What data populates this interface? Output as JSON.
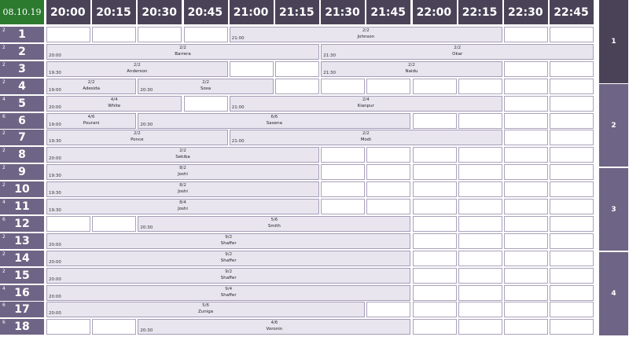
{
  "date": "08.10.19",
  "times": [
    "20:00",
    "20:15",
    "20:30",
    "20:45",
    "21:00",
    "21:15",
    "21:30",
    "21:45",
    "22:00",
    "22:15",
    "22:30",
    "22:45"
  ],
  "sections": [
    {
      "label": "1",
      "active": true
    },
    {
      "label": "2",
      "active": false
    },
    {
      "label": "3",
      "active": false
    },
    {
      "label": "4",
      "active": false
    }
  ],
  "colors": {
    "date": "#2b7a2e",
    "header": "#4a4358",
    "row_header": "#6e6485",
    "section_active": "#4a4358",
    "section": "#6e6485",
    "booking": "#e8e5ef"
  },
  "rows": [
    {
      "table": "1",
      "capacity": "2",
      "cells": [
        {
          "span": 1
        },
        {
          "span": 1
        },
        {
          "span": 1
        },
        {
          "span": 1
        },
        {
          "span": 6,
          "time": "21:00",
          "count": "2/2",
          "name": "Johnson"
        },
        {
          "span": 1
        },
        {
          "span": 1
        }
      ]
    },
    {
      "table": "2",
      "capacity": "2",
      "cells": [
        {
          "span": 6,
          "time": "20:00",
          "count": "2/2",
          "name": "Barrera"
        },
        {
          "span": 6,
          "time": "21:30",
          "count": "2/2",
          "name": "Okar"
        }
      ]
    },
    {
      "table": "3",
      "capacity": "2",
      "cells": [
        {
          "span": 4,
          "time": "19:30",
          "count": "2/2",
          "name": "Anderson"
        },
        {
          "span": 1
        },
        {
          "span": 1
        },
        {
          "span": 4,
          "time": "21:30",
          "count": "2/2",
          "name": "Naidu"
        },
        {
          "span": 1
        },
        {
          "span": 1
        }
      ]
    },
    {
      "table": "4",
      "capacity": "2",
      "cells": [
        {
          "span": 2,
          "time": "19:00",
          "count": "2/2",
          "name": "Adesida"
        },
        {
          "span": 3,
          "time": "20:30",
          "count": "2/2",
          "name": "Sosa"
        },
        {
          "span": 1
        },
        {
          "span": 1
        },
        {
          "span": 1
        },
        {
          "span": 1
        },
        {
          "span": 1
        },
        {
          "span": 1
        },
        {
          "span": 1
        }
      ]
    },
    {
      "table": "5",
      "capacity": "4",
      "cells": [
        {
          "span": 3,
          "time": "20:00",
          "count": "4/4",
          "name": "White"
        },
        {
          "span": 1
        },
        {
          "span": 6,
          "time": "21:00",
          "count": "2/4",
          "name": "Kianpur"
        },
        {
          "span": 1
        },
        {
          "span": 1
        }
      ]
    },
    {
      "table": "6",
      "capacity": "6",
      "cells": [
        {
          "span": 2,
          "time": "19:00",
          "count": "4/6",
          "name": "Pourani"
        },
        {
          "span": 6,
          "time": "20:30",
          "count": "6/6",
          "name": "Saxena"
        },
        {
          "span": 1
        },
        {
          "span": 1
        },
        {
          "span": 1
        },
        {
          "span": 1
        }
      ]
    },
    {
      "table": "7",
      "capacity": "2",
      "cells": [
        {
          "span": 4,
          "time": "19:30",
          "count": "2/2",
          "name": "Ponce"
        },
        {
          "span": 6,
          "time": "21:00",
          "count": "2/2",
          "name": "Modi"
        },
        {
          "span": 1
        },
        {
          "span": 1
        }
      ]
    },
    {
      "table": "8",
      "capacity": "2",
      "cells": [
        {
          "span": 6,
          "time": "20:00",
          "count": "2/2",
          "name": "Sekiba"
        },
        {
          "span": 1
        },
        {
          "span": 1
        },
        {
          "span": 1
        },
        {
          "span": 1
        },
        {
          "span": 1
        },
        {
          "span": 1
        }
      ]
    },
    {
      "table": "9",
      "capacity": "2",
      "cells": [
        {
          "span": 6,
          "time": "19:30",
          "count": "8/2",
          "name": "Joshi"
        },
        {
          "span": 1
        },
        {
          "span": 1
        },
        {
          "span": 1
        },
        {
          "span": 1
        },
        {
          "span": 1
        },
        {
          "span": 1
        }
      ]
    },
    {
      "table": "10",
      "capacity": "2",
      "cells": [
        {
          "span": 6,
          "time": "19:30",
          "count": "8/2",
          "name": "Joshi"
        },
        {
          "span": 1
        },
        {
          "span": 1
        },
        {
          "span": 1
        },
        {
          "span": 1
        },
        {
          "span": 1
        },
        {
          "span": 1
        }
      ]
    },
    {
      "table": "11",
      "capacity": "4",
      "cells": [
        {
          "span": 6,
          "time": "19:30",
          "count": "8/4",
          "name": "Joshi"
        },
        {
          "span": 1
        },
        {
          "span": 1
        },
        {
          "span": 1
        },
        {
          "span": 1
        },
        {
          "span": 1
        },
        {
          "span": 1
        }
      ]
    },
    {
      "table": "12",
      "capacity": "6",
      "cells": [
        {
          "span": 1
        },
        {
          "span": 1
        },
        {
          "span": 6,
          "time": "20:30",
          "count": "5/6",
          "name": "Smith"
        },
        {
          "span": 1
        },
        {
          "span": 1
        },
        {
          "span": 1
        },
        {
          "span": 1
        }
      ]
    },
    {
      "table": "13",
      "capacity": "2",
      "cells": [
        {
          "span": 8,
          "time": "20:00",
          "count": "9/2",
          "name": "Shaffer"
        },
        {
          "span": 1
        },
        {
          "span": 1
        },
        {
          "span": 1
        },
        {
          "span": 1
        }
      ]
    },
    {
      "table": "14",
      "capacity": "2",
      "cells": [
        {
          "span": 8,
          "time": "20:00",
          "count": "9/2",
          "name": "Shaffer"
        },
        {
          "span": 1
        },
        {
          "span": 1
        },
        {
          "span": 1
        },
        {
          "span": 1
        }
      ]
    },
    {
      "table": "15",
      "capacity": "2",
      "cells": [
        {
          "span": 8,
          "time": "20:00",
          "count": "9/2",
          "name": "Shaffer"
        },
        {
          "span": 1
        },
        {
          "span": 1
        },
        {
          "span": 1
        },
        {
          "span": 1
        }
      ]
    },
    {
      "table": "16",
      "capacity": "4",
      "cells": [
        {
          "span": 8,
          "time": "20:00",
          "count": "9/4",
          "name": "Shaffer"
        },
        {
          "span": 1
        },
        {
          "span": 1
        },
        {
          "span": 1
        },
        {
          "span": 1
        }
      ]
    },
    {
      "table": "17",
      "capacity": "6",
      "cells": [
        {
          "span": 7,
          "time": "20:00",
          "count": "5/6",
          "name": "Zuniga"
        },
        {
          "span": 1
        },
        {
          "span": 1
        },
        {
          "span": 1
        },
        {
          "span": 1
        },
        {
          "span": 1
        }
      ]
    },
    {
      "table": "18",
      "capacity": "6",
      "cells": [
        {
          "span": 1
        },
        {
          "span": 1
        },
        {
          "span": 6,
          "time": "20:30",
          "count": "4/6",
          "name": "Voronin"
        },
        {
          "span": 1
        },
        {
          "span": 1
        },
        {
          "span": 1
        },
        {
          "span": 1
        }
      ]
    }
  ]
}
